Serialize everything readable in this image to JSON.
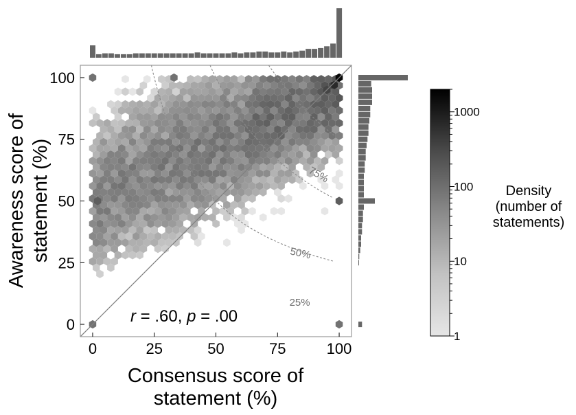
{
  "chart_data": [
    {
      "type": "heatmap",
      "subtype": "hexbin",
      "xlabel_line1": "Consensus score of",
      "xlabel_line2": "statement (%)",
      "ylabel_line1": "Awareness score of",
      "ylabel_line2": "statement (%)",
      "xlim": [
        -5,
        105
      ],
      "ylim": [
        -5,
        105
      ],
      "xticks": [
        "0",
        "25",
        "50",
        "75",
        "100"
      ],
      "yticks": [
        "0",
        "25",
        "50",
        "75",
        "100"
      ],
      "grid": false,
      "colormap": {
        "low": "#e6e6e6",
        "high": "#000000"
      },
      "stat_prefix": "r = .60, p = .00",
      "stat_r_letter": "r",
      "stat_r_value": " = .60, ",
      "stat_p_letter": "p",
      "stat_p_value": " = .00",
      "identity_line": {
        "from": [
          -5,
          -5
        ],
        "to": [
          105,
          105
        ],
        "color": "#808080"
      },
      "contours": [
        {
          "label": "25%",
          "level": 0.25
        },
        {
          "label": "50%",
          "level": 0.5
        },
        {
          "label": "75%",
          "level": 0.75
        }
      ],
      "notable_cells": [
        {
          "x": 0,
          "y": 100,
          "count": 30
        },
        {
          "x": 33,
          "y": 100,
          "count": 30
        },
        {
          "x": 0,
          "y": 0,
          "count": 30
        },
        {
          "x": 100,
          "y": 0,
          "count": 30
        },
        {
          "x": 2,
          "y": 50,
          "count": 60
        },
        {
          "x": 100,
          "y": 50,
          "count": 60
        },
        {
          "x": 100,
          "y": 100,
          "count": 1500
        },
        {
          "x": 98,
          "y": 97,
          "count": 400
        },
        {
          "x": 95,
          "y": 95,
          "count": 150
        }
      ]
    },
    {
      "type": "bar",
      "orientation": "vertical",
      "role": "x-marginal-histogram",
      "x_start": 0,
      "bin_width": 2.5,
      "values": [
        7,
        2,
        2.5,
        2.5,
        2,
        2,
        2,
        2.5,
        2.5,
        2.5,
        2.5,
        2.5,
        2.5,
        2.5,
        2.5,
        2.5,
        2.5,
        3,
        2.5,
        2.5,
        2.5,
        2.5,
        2.5,
        3,
        2.5,
        3,
        3,
        3.5,
        3.5,
        3,
        3,
        3.5,
        3,
        3.5,
        4,
        5,
        5,
        5.5,
        6.5,
        8,
        28
      ],
      "color": "#666666"
    },
    {
      "type": "bar",
      "orientation": "horizontal",
      "role": "y-marginal-histogram",
      "y_start": 0,
      "bin_width": 2.5,
      "values": [
        2,
        0,
        0,
        0,
        0,
        0,
        0,
        0,
        0,
        0,
        0.3,
        0.5,
        1,
        1.5,
        1.5,
        2,
        2,
        2.5,
        2.5,
        3,
        9,
        3,
        3,
        3,
        3,
        3.5,
        3.5,
        4,
        4,
        4.5,
        5,
        5.5,
        5.5,
        6,
        6.5,
        6.5,
        7.5,
        7.5,
        7.5,
        7,
        27
      ],
      "color": "#666666"
    },
    {
      "type": "colorbar",
      "scale": "log",
      "range": [
        1,
        2000
      ],
      "ticks": [
        "1",
        "10",
        "100",
        "1000"
      ],
      "title_line1": "Density",
      "title_line2": "(number of",
      "title_line3": "statements)"
    }
  ]
}
